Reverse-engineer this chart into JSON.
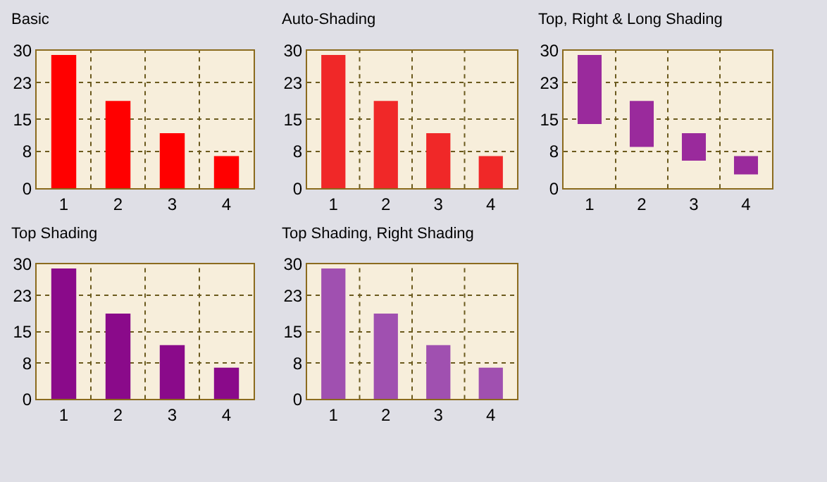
{
  "chart_data": [
    {
      "type": "bar",
      "title": "Basic",
      "categories": [
        "1",
        "2",
        "3",
        "4"
      ],
      "values": [
        29,
        19,
        12,
        7
      ],
      "color": "#ff0000",
      "ylim": [
        0,
        30
      ],
      "yticks": [
        0,
        8,
        15,
        23,
        30
      ],
      "grid": true
    },
    {
      "type": "bar",
      "title": "Auto-Shading",
      "categories": [
        "1",
        "2",
        "3",
        "4"
      ],
      "values": [
        29,
        19,
        12,
        7
      ],
      "color": "#f02828",
      "ylim": [
        0,
        30
      ],
      "yticks": [
        0,
        8,
        15,
        23,
        30
      ],
      "grid": true
    },
    {
      "type": "bar",
      "title": "Top, Right & Long Shading",
      "categories": [
        "1",
        "2",
        "3",
        "4"
      ],
      "values": [
        15,
        10,
        6,
        4
      ],
      "base": [
        14,
        9,
        6,
        3
      ],
      "color": "#9a2a9c",
      "ylim": [
        0,
        30
      ],
      "yticks": [
        0,
        8,
        15,
        23,
        30
      ],
      "grid": true
    },
    {
      "type": "bar",
      "title": "Top Shading",
      "categories": [
        "1",
        "2",
        "3",
        "4"
      ],
      "values": [
        29,
        19,
        12,
        7
      ],
      "color": "#8a0a8a",
      "ylim": [
        0,
        30
      ],
      "yticks": [
        0,
        8,
        15,
        23,
        30
      ],
      "grid": true
    },
    {
      "type": "bar",
      "title": "Top Shading, Right Shading",
      "categories": [
        "1",
        "2",
        "3",
        "4"
      ],
      "values": [
        29,
        19,
        12,
        7
      ],
      "color": "#a050b0",
      "ylim": [
        0,
        30
      ],
      "yticks": [
        0,
        8,
        15,
        23,
        30
      ],
      "grid": true
    }
  ]
}
